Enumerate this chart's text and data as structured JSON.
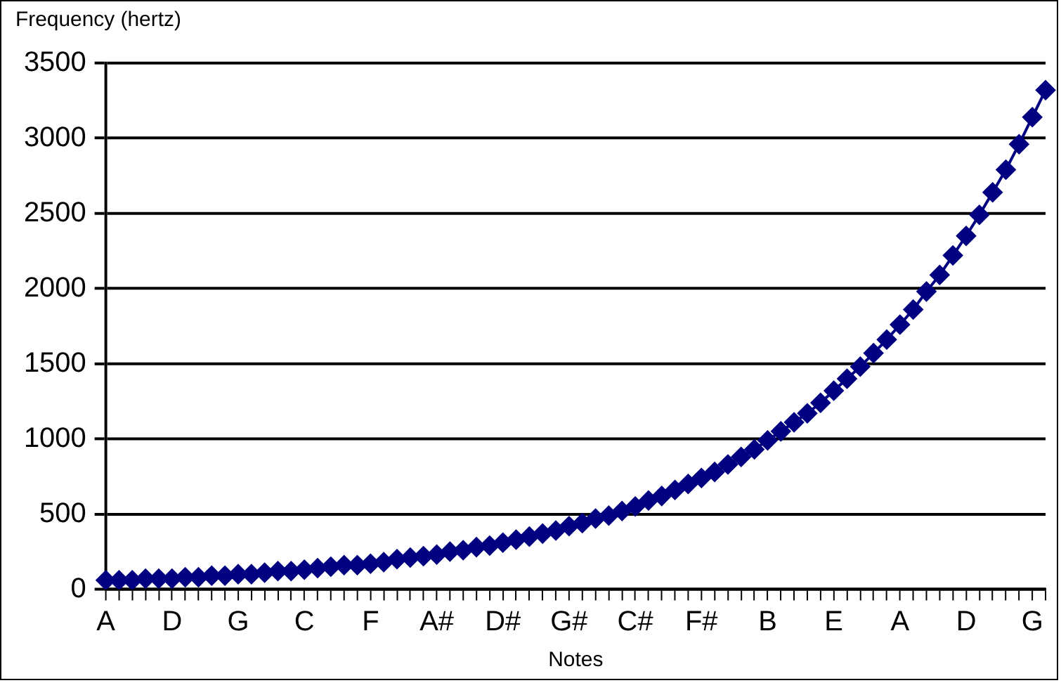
{
  "chart_data": {
    "type": "line",
    "xlabel": "Notes",
    "ylabel": "Frequency (hertz)",
    "categories": [
      "A",
      null,
      null,
      null,
      null,
      "D",
      null,
      null,
      null,
      null,
      "G",
      null,
      null,
      null,
      null,
      "C",
      null,
      null,
      null,
      null,
      "F",
      null,
      null,
      null,
      null,
      "A#",
      null,
      null,
      null,
      null,
      "D#",
      null,
      null,
      null,
      null,
      "G#",
      null,
      null,
      null,
      null,
      "C#",
      null,
      null,
      null,
      null,
      "F#",
      null,
      null,
      null,
      null,
      "B",
      null,
      null,
      null,
      null,
      "E",
      null,
      null,
      null,
      null,
      "A",
      null,
      null,
      null,
      null,
      "D",
      null,
      null,
      null,
      null,
      "G",
      null
    ],
    "series": [
      {
        "color": "#000080",
        "values": [
          60,
          60,
          60,
          70,
          70,
          70,
          80,
          80,
          90,
          90,
          100,
          100,
          110,
          120,
          120,
          130,
          140,
          150,
          160,
          160,
          170,
          180,
          200,
          210,
          220,
          230,
          250,
          260,
          280,
          290,
          310,
          330,
          350,
          370,
          390,
          420,
          440,
          470,
          490,
          520,
          550,
          590,
          620,
          660,
          700,
          740,
          780,
          830,
          880,
          930,
          990,
          1050,
          1110,
          1170,
          1240,
          1320,
          1400,
          1480,
          1570,
          1660,
          1760,
          1860,
          1980,
          2090,
          2220,
          2350,
          2490,
          2640,
          2790,
          2960,
          3140,
          3320
        ]
      }
    ],
    "ylim": [
      0,
      3500
    ],
    "yticks": [
      0,
      500,
      1000,
      1500,
      2000,
      2500,
      3000,
      3500
    ],
    "grid": "y",
    "legend": false,
    "marker": "diamond",
    "line_style": "solid"
  }
}
